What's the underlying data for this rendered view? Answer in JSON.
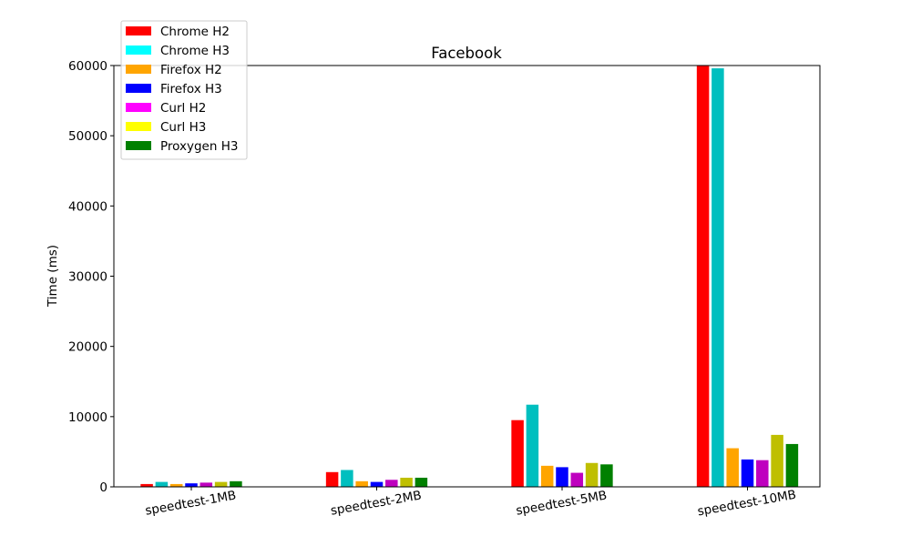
{
  "chart_data": {
    "type": "bar",
    "title": "Facebook",
    "xlabel": "",
    "ylabel": "Time (ms)",
    "ylim": [
      0,
      60000
    ],
    "yticks": [
      0,
      10000,
      20000,
      30000,
      40000,
      50000,
      60000
    ],
    "grid": false,
    "legend_position": "top-left",
    "categories": [
      "speedtest-1MB",
      "speedtest-2MB",
      "speedtest-5MB",
      "speedtest-10MB"
    ],
    "series": [
      {
        "name": "Chrome H2",
        "legend_color": "#ff0000",
        "bar_color": "#ff0000",
        "values": [
          400,
          2100,
          9500,
          60000
        ]
      },
      {
        "name": "Chrome H3",
        "legend_color": "#00ffff",
        "bar_color": "#00bfbf",
        "values": [
          700,
          2400,
          11700,
          59600
        ]
      },
      {
        "name": "Firefox H2",
        "legend_color": "#ffa500",
        "bar_color": "#ffa500",
        "values": [
          400,
          800,
          3000,
          5500
        ]
      },
      {
        "name": "Firefox H3",
        "legend_color": "#0000ff",
        "bar_color": "#0000ff",
        "values": [
          500,
          700,
          2800,
          3900
        ]
      },
      {
        "name": "Curl H2",
        "legend_color": "#ff00ff",
        "bar_color": "#bf00bf",
        "values": [
          600,
          1000,
          2000,
          3800
        ]
      },
      {
        "name": "Curl H3",
        "legend_color": "#ffff00",
        "bar_color": "#bfbf00",
        "values": [
          700,
          1300,
          3400,
          7400
        ]
      },
      {
        "name": "Proxygen H3",
        "legend_color": "#008000",
        "bar_color": "#008000",
        "values": [
          800,
          1300,
          3200,
          6100
        ]
      }
    ]
  }
}
